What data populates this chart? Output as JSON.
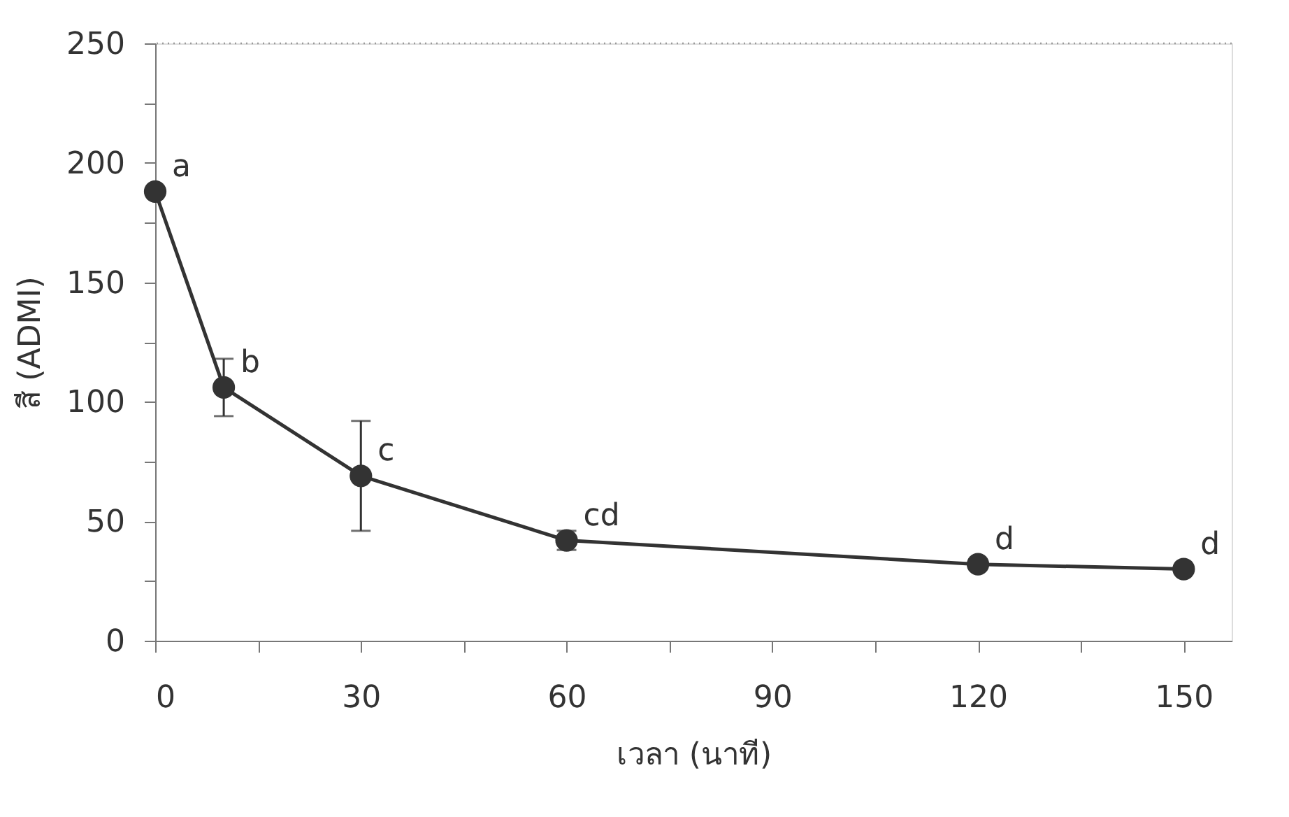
{
  "chart_data": {
    "type": "line",
    "xlabel": "เวลา (นาที)",
    "ylabel": "สี (ADMI)",
    "x": [
      0,
      10,
      30,
      60,
      120,
      150
    ],
    "series": [
      {
        "color": "#333333",
        "values": [
          188,
          106,
          69,
          42,
          32,
          30
        ],
        "errors": [
          null,
          12,
          23,
          4,
          null,
          null
        ]
      }
    ],
    "xlim": [
      0,
      157
    ],
    "ylim": [
      0,
      250
    ],
    "xticks": [
      0,
      {
        "value": 15,
        "label": null
      },
      30,
      {
        "value": 45,
        "label": null
      },
      60,
      {
        "value": 75,
        "label": null
      },
      90,
      {
        "value": 105,
        "label": null
      },
      120,
      {
        "value": 135,
        "label": null
      },
      150
    ],
    "yticks": [
      0,
      {
        "value": 25,
        "label": null
      },
      50,
      {
        "value": 75,
        "label": null
      },
      100,
      {
        "value": 125,
        "label": null
      },
      150,
      {
        "value": 175,
        "label": null
      },
      200,
      {
        "value": 225,
        "label": null
      },
      250
    ],
    "ref_lines": [
      {
        "axis": "y",
        "value": 250,
        "color": "#999999",
        "line_style": "dotted"
      }
    ],
    "annotations": [
      {
        "text": "a",
        "x": 0,
        "y": 188
      },
      {
        "text": "b",
        "x": 10,
        "y": 106
      },
      {
        "text": "c",
        "x": 30,
        "y": 69
      },
      {
        "text": "cd",
        "x": 60,
        "y": 42
      },
      {
        "text": "d",
        "x": 120,
        "y": 32
      },
      {
        "text": "d",
        "x": 150,
        "y": 30
      }
    ],
    "marker": "circle",
    "line_style": "solid",
    "grid": false
  }
}
